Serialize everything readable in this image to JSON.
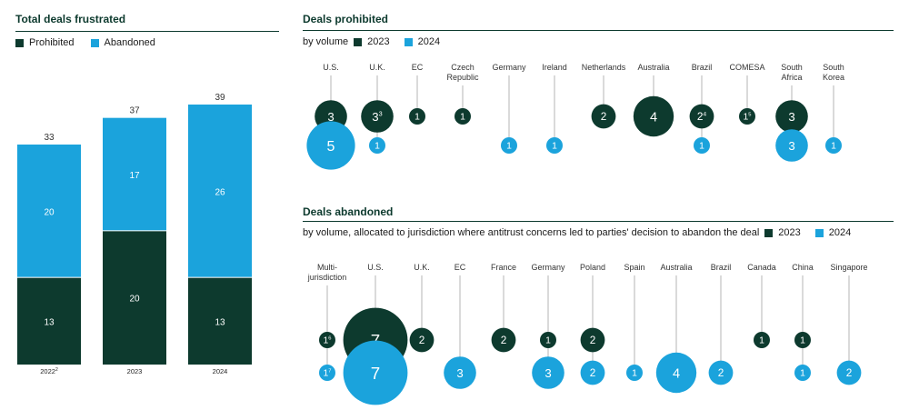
{
  "colors": {
    "dark": "#0d3a2e",
    "light": "#1ba3dc",
    "line": "#b5b5b5",
    "text": "#333333"
  },
  "chart_data": [
    {
      "type": "bar",
      "title": "Total deals frustrated",
      "legend": [
        "Prohibited",
        "Abandoned"
      ],
      "categories": [
        "2022",
        "2023",
        "2024"
      ],
      "category_notes": [
        "2",
        "",
        ""
      ],
      "series": [
        {
          "name": "Prohibited",
          "values": [
            13,
            20,
            13
          ]
        },
        {
          "name": "Abandoned",
          "values": [
            20,
            17,
            26
          ]
        }
      ],
      "totals": [
        33,
        37,
        39
      ],
      "ylim": [
        0,
        39
      ]
    },
    {
      "type": "scatter",
      "title": "Deals prohibited",
      "subtitle": "by volume",
      "legend": [
        "2023",
        "2024"
      ],
      "jurisdictions": [
        {
          "name": "U.S.",
          "v2023": 3,
          "v2024": 5
        },
        {
          "name": "U.K.",
          "v2023": 3,
          "n2023": "3",
          "v2024": 1
        },
        {
          "name": "EC",
          "v2023": 1,
          "v2024": null
        },
        {
          "name": "Czech Republic",
          "v2023": 1,
          "v2024": null
        },
        {
          "name": "Germany",
          "v2023": null,
          "v2024": 1
        },
        {
          "name": "Ireland",
          "v2023": null,
          "v2024": 1
        },
        {
          "name": "Netherlands",
          "v2023": 2,
          "v2024": null
        },
        {
          "name": "Australia",
          "v2023": 4,
          "v2024": null
        },
        {
          "name": "Brazil",
          "v2023": 2,
          "n2023": "4",
          "v2024": 1
        },
        {
          "name": "COMESA",
          "v2023": 1,
          "n2023": "5",
          "v2024": null
        },
        {
          "name": "South Africa",
          "v2023": 3,
          "v2024": 3
        },
        {
          "name": "South Korea",
          "v2023": null,
          "v2024": 1
        }
      ]
    },
    {
      "type": "scatter",
      "title": "Deals abandoned",
      "subtitle": "by volume, allocated to jurisdiction where antitrust concerns led to parties' decision to abandon the deal",
      "legend": [
        "2023",
        "2024"
      ],
      "jurisdictions": [
        {
          "name": "Multi-jurisdiction",
          "v2023": 1,
          "n2023": "6",
          "v2024": 1,
          "n2024": "7"
        },
        {
          "name": "U.S.",
          "v2023": 7,
          "v2024": 7
        },
        {
          "name": "U.K.",
          "v2023": 2,
          "v2024": null
        },
        {
          "name": "EC",
          "v2023": null,
          "v2024": 3
        },
        {
          "name": "France",
          "v2023": 2,
          "v2024": null
        },
        {
          "name": "Germany",
          "v2023": 1,
          "v2024": 3
        },
        {
          "name": "Poland",
          "v2023": 2,
          "v2024": 2
        },
        {
          "name": "Spain",
          "v2023": null,
          "v2024": 1
        },
        {
          "name": "Australia",
          "v2023": null,
          "v2024": 4
        },
        {
          "name": "Brazil",
          "v2023": null,
          "v2024": 2
        },
        {
          "name": "Canada",
          "v2023": 1,
          "v2024": null
        },
        {
          "name": "China",
          "v2023": 1,
          "v2024": 1
        },
        {
          "name": "Singapore",
          "v2023": null,
          "v2024": 2
        }
      ]
    }
  ]
}
